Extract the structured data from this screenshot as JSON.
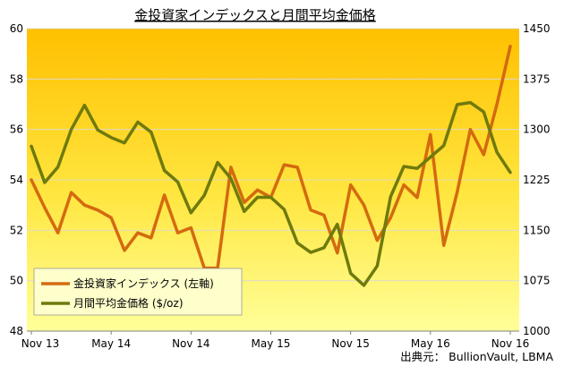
{
  "chart_data": {
    "type": "line",
    "title": "金投資家インデックスと月間平均金価格",
    "source": "出典元： BullionVault, LBMA",
    "x_ticks": [
      "Nov 13",
      "May 14",
      "Nov 14",
      "May 15",
      "Nov 15",
      "May 16",
      "Nov 16"
    ],
    "months": [
      "2013-11",
      "2013-12",
      "2014-01",
      "2014-02",
      "2014-03",
      "2014-04",
      "2014-05",
      "2014-06",
      "2014-07",
      "2014-08",
      "2014-09",
      "2014-10",
      "2014-11",
      "2014-12",
      "2015-01",
      "2015-02",
      "2015-03",
      "2015-04",
      "2015-05",
      "2015-06",
      "2015-07",
      "2015-08",
      "2015-09",
      "2015-10",
      "2015-11",
      "2015-12",
      "2016-01",
      "2016-02",
      "2016-03",
      "2016-04",
      "2016-05",
      "2016-06",
      "2016-07",
      "2016-08",
      "2016-09",
      "2016-10",
      "2016-11"
    ],
    "y_left": {
      "min": 48,
      "max": 60,
      "ticks": [
        "48",
        "50",
        "52",
        "54",
        "56",
        "58",
        "60"
      ]
    },
    "y_right": {
      "min": 1000,
      "max": 1450,
      "ticks": [
        "1000",
        "1075",
        "1150",
        "1225",
        "1300",
        "1375",
        "1450"
      ]
    },
    "series": [
      {
        "name": "金投資家インデックス (左軸)",
        "axis": "left",
        "color": "#d46a10",
        "values": [
          54.0,
          52.9,
          51.9,
          53.5,
          53.0,
          52.8,
          52.5,
          51.2,
          51.9,
          51.7,
          53.4,
          51.9,
          52.1,
          50.5,
          50.5,
          54.5,
          53.1,
          53.6,
          53.3,
          54.6,
          54.5,
          52.8,
          52.6,
          51.1,
          53.8,
          53.0,
          51.6,
          52.5,
          53.8,
          53.3,
          55.8,
          51.4,
          53.5,
          56.0,
          55.0,
          57.0,
          59.3
        ]
      },
      {
        "name": "月間平均金価格 ($/oz)",
        "axis": "right",
        "color": "#6f7a0d",
        "values": [
          1275,
          1221,
          1244,
          1300,
          1336,
          1299,
          1288,
          1280,
          1311,
          1296,
          1239,
          1222,
          1176,
          1202,
          1251,
          1227,
          1178,
          1199,
          1199,
          1181,
          1131,
          1117,
          1124,
          1159,
          1086,
          1068,
          1097,
          1200,
          1245,
          1242,
          1259,
          1276,
          1337,
          1340,
          1326,
          1266,
          1236
        ]
      }
    ],
    "legend_position": "bottom-left",
    "background": "gradient orange-to-yellow",
    "grid": true
  }
}
